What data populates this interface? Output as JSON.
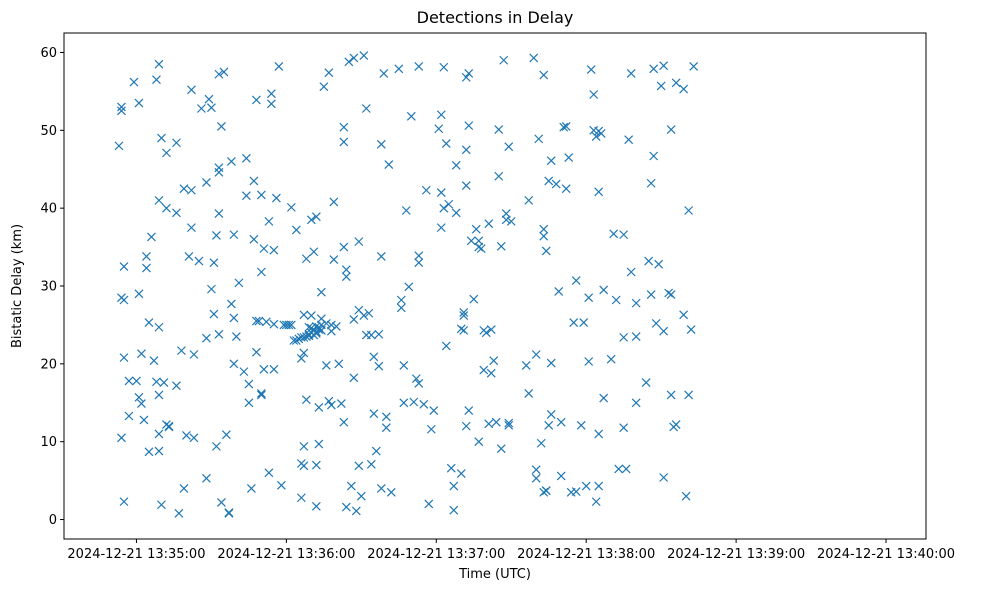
{
  "chart_data": {
    "type": "scatter",
    "title": "Detections in Delay",
    "xlabel": "Time (UTC)",
    "ylabel": "Bistatic Delay (km)",
    "marker": "x",
    "color": "#1f77b4",
    "xlim_seconds": [
      -29,
      316
    ],
    "ylim": [
      -2.5,
      62.5
    ],
    "x_ticks": [
      {
        "t": 0,
        "label": "2024-12-21 13:35:00"
      },
      {
        "t": 60,
        "label": "2024-12-21 13:36:00"
      },
      {
        "t": 120,
        "label": "2024-12-21 13:37:00"
      },
      {
        "t": 180,
        "label": "2024-12-21 13:38:00"
      },
      {
        "t": 240,
        "label": "2024-12-21 13:39:00"
      },
      {
        "t": 300,
        "label": "2024-12-21 13:40:00"
      }
    ],
    "y_ticks": [
      {
        "v": 0,
        "label": "0"
      },
      {
        "v": 10,
        "label": "10"
      },
      {
        "v": 20,
        "label": "20"
      },
      {
        "v": 30,
        "label": "30"
      },
      {
        "v": 40,
        "label": "40"
      },
      {
        "v": 50,
        "label": "50"
      },
      {
        "v": 60,
        "label": "60"
      }
    ],
    "x_units": "seconds after 2024-12-21 13:35:00 UTC",
    "points": [
      [
        -7,
        48
      ],
      [
        -6,
        53
      ],
      [
        -6,
        52.5
      ],
      [
        -6,
        28.5
      ],
      [
        -6,
        10.5
      ],
      [
        -5,
        20.8
      ],
      [
        -5,
        28.2
      ],
      [
        -5,
        32.5
      ],
      [
        -5,
        2.3
      ],
      [
        -3,
        17.8
      ],
      [
        -3,
        13.3
      ],
      [
        -1,
        56.2
      ],
      [
        0,
        17.8
      ],
      [
        1,
        53.5
      ],
      [
        1,
        29
      ],
      [
        1,
        15.7
      ],
      [
        2,
        21.3
      ],
      [
        2,
        14.9
      ],
      [
        3,
        12.8
      ],
      [
        4,
        32.3
      ],
      [
        4,
        33.8
      ],
      [
        5,
        25.3
      ],
      [
        5,
        8.7
      ],
      [
        6,
        36.3
      ],
      [
        7,
        20.4
      ],
      [
        8,
        17.7
      ],
      [
        8,
        56.5
      ],
      [
        9,
        58.5
      ],
      [
        9,
        41
      ],
      [
        9,
        24.7
      ],
      [
        9,
        16
      ],
      [
        9,
        11
      ],
      [
        9,
        8.8
      ],
      [
        10,
        49
      ],
      [
        10,
        1.9
      ],
      [
        11,
        17.6
      ],
      [
        12,
        47.1
      ],
      [
        12,
        40
      ],
      [
        12,
        12.2
      ],
      [
        13,
        12
      ],
      [
        13,
        11.9
      ],
      [
        16,
        48.4
      ],
      [
        16,
        39.4
      ],
      [
        16,
        17.2
      ],
      [
        17,
        0.8
      ],
      [
        18,
        21.7
      ],
      [
        19,
        42.5
      ],
      [
        19,
        4
      ],
      [
        20,
        10.8
      ],
      [
        21,
        33.8
      ],
      [
        22,
        55.2
      ],
      [
        22,
        42.3
      ],
      [
        22,
        37.5
      ],
      [
        23,
        21.2
      ],
      [
        23,
        10.5
      ],
      [
        25,
        33.2
      ],
      [
        26,
        52.8
      ],
      [
        28,
        43.3
      ],
      [
        28,
        23.3
      ],
      [
        28,
        5.3
      ],
      [
        29,
        54
      ],
      [
        30,
        52.9
      ],
      [
        30,
        29.6
      ],
      [
        31,
        26.4
      ],
      [
        31,
        33
      ],
      [
        32,
        9.4
      ],
      [
        32,
        36.5
      ],
      [
        33,
        57.2
      ],
      [
        33,
        44.6
      ],
      [
        33,
        45.2
      ],
      [
        33,
        39.3
      ],
      [
        33,
        23.8
      ],
      [
        34,
        50.5
      ],
      [
        34,
        2.2
      ],
      [
        35,
        57.5
      ],
      [
        36,
        10.9
      ],
      [
        37,
        0.8
      ],
      [
        37,
        0.9
      ],
      [
        38,
        46
      ],
      [
        38,
        27.7
      ],
      [
        39,
        36.6
      ],
      [
        39,
        25.9
      ],
      [
        39,
        20
      ],
      [
        40,
        23.5
      ],
      [
        41,
        30.4
      ],
      [
        43,
        19
      ],
      [
        44,
        46.4
      ],
      [
        44,
        41.6
      ],
      [
        45,
        17.4
      ],
      [
        45,
        15
      ],
      [
        46,
        4
      ],
      [
        47,
        43.5
      ],
      [
        47,
        36
      ],
      [
        48,
        53.9
      ],
      [
        48,
        25.5
      ],
      [
        48,
        21.5
      ],
      [
        49,
        25.5
      ],
      [
        50,
        31.8
      ],
      [
        50,
        41.7
      ],
      [
        50,
        16.2
      ],
      [
        50,
        16
      ],
      [
        51,
        34.8
      ],
      [
        51,
        19.3
      ],
      [
        52,
        25.4
      ],
      [
        53,
        6
      ],
      [
        53,
        38.3
      ],
      [
        54,
        54.7
      ],
      [
        54,
        53.4
      ],
      [
        55,
        25.1
      ],
      [
        55,
        34.6
      ],
      [
        55,
        19.3
      ],
      [
        56,
        41.3
      ],
      [
        57,
        58.2
      ],
      [
        58,
        4.4
      ],
      [
        59,
        25
      ],
      [
        60,
        25
      ],
      [
        61,
        25
      ],
      [
        62,
        25
      ],
      [
        62,
        40.1
      ],
      [
        63,
        23
      ],
      [
        64,
        37.2
      ],
      [
        64,
        23
      ],
      [
        65,
        23.2
      ],
      [
        66,
        23.4
      ],
      [
        66,
        20.7
      ],
      [
        66,
        7.2
      ],
      [
        66,
        2.8
      ],
      [
        67,
        23.4
      ],
      [
        67,
        26.3
      ],
      [
        67,
        21.4
      ],
      [
        67,
        9.4
      ],
      [
        67,
        6.9
      ],
      [
        68,
        23.5
      ],
      [
        68,
        33.5
      ],
      [
        68,
        15.4
      ],
      [
        69,
        23.6
      ],
      [
        69,
        24.7
      ],
      [
        69,
        23.8
      ],
      [
        70,
        24
      ],
      [
        70,
        26.2
      ],
      [
        70,
        38.5
      ],
      [
        70,
        24.6
      ],
      [
        71,
        24.3
      ],
      [
        71,
        23.7
      ],
      [
        71,
        34.4
      ],
      [
        72,
        24.1
      ],
      [
        72,
        23.9
      ],
      [
        72,
        24.8
      ],
      [
        72,
        38.9
      ],
      [
        72,
        1.7
      ],
      [
        72,
        7
      ],
      [
        73,
        24.4
      ],
      [
        73,
        24.7
      ],
      [
        73,
        9.7
      ],
      [
        73,
        14.4
      ],
      [
        74,
        25
      ],
      [
        74,
        29.2
      ],
      [
        74,
        25.8
      ],
      [
        74,
        24.3
      ],
      [
        74,
        24.3
      ],
      [
        75,
        55.6
      ],
      [
        76,
        25.2
      ],
      [
        76,
        19.8
      ],
      [
        77,
        15.2
      ],
      [
        77,
        57.4
      ],
      [
        78,
        24.2
      ],
      [
        78,
        25
      ],
      [
        78,
        14.7
      ],
      [
        79,
        40.8
      ],
      [
        79,
        33.4
      ],
      [
        80,
        24.8
      ],
      [
        81,
        20
      ],
      [
        82,
        14.9
      ],
      [
        83,
        50.4
      ],
      [
        83,
        48.5
      ],
      [
        83,
        35
      ],
      [
        83,
        12.5
      ],
      [
        84,
        32.1
      ],
      [
        84,
        31.2
      ],
      [
        84,
        1.6
      ],
      [
        85,
        58.8
      ],
      [
        86,
        4.3
      ],
      [
        87,
        59.3
      ],
      [
        87,
        25.7
      ],
      [
        87,
        18.2
      ],
      [
        88,
        1.1
      ],
      [
        89,
        35.7
      ],
      [
        89,
        26.9
      ],
      [
        89,
        6.9
      ],
      [
        90,
        3
      ],
      [
        91,
        59.6
      ],
      [
        91,
        26.2
      ],
      [
        92,
        52.8
      ],
      [
        92,
        23.7
      ],
      [
        93,
        26.5
      ],
      [
        94,
        7.1
      ],
      [
        94,
        23.7
      ],
      [
        95,
        20.9
      ],
      [
        95,
        13.6
      ],
      [
        96,
        8.8
      ],
      [
        97,
        23.8
      ],
      [
        97,
        19.7
      ],
      [
        98,
        48.2
      ],
      [
        98,
        33.8
      ],
      [
        98,
        4
      ],
      [
        99,
        57.3
      ],
      [
        100,
        11.8
      ],
      [
        100,
        13.2
      ],
      [
        101,
        45.6
      ],
      [
        102,
        3.5
      ],
      [
        105,
        57.9
      ],
      [
        106,
        28.2
      ],
      [
        106,
        27.2
      ],
      [
        107,
        15
      ],
      [
        107,
        19.8
      ],
      [
        108,
        39.7
      ],
      [
        109,
        29.9
      ],
      [
        110,
        51.8
      ],
      [
        111,
        15.1
      ],
      [
        112,
        18.1
      ],
      [
        113,
        17.5
      ],
      [
        113,
        58.2
      ],
      [
        113,
        33.9
      ],
      [
        113,
        33
      ],
      [
        115,
        14.8
      ],
      [
        116,
        42.3
      ],
      [
        117,
        2
      ],
      [
        118,
        11.6
      ],
      [
        119,
        14
      ],
      [
        121,
        50.2
      ],
      [
        122,
        52
      ],
      [
        122,
        42
      ],
      [
        122,
        37.5
      ],
      [
        123,
        40
      ],
      [
        123,
        58.1
      ],
      [
        124,
        48.3
      ],
      [
        124,
        22.3
      ],
      [
        125,
        40.5
      ],
      [
        126,
        6.6
      ],
      [
        127,
        4.3
      ],
      [
        127,
        1.2
      ],
      [
        128,
        39.4
      ],
      [
        128,
        45.5
      ],
      [
        130,
        5.9
      ],
      [
        130,
        24.5
      ],
      [
        131,
        24.3
      ],
      [
        131,
        26.2
      ],
      [
        131,
        26.6
      ],
      [
        132,
        47.5
      ],
      [
        132,
        56.8
      ],
      [
        132,
        42.9
      ],
      [
        132,
        12
      ],
      [
        133,
        57.3
      ],
      [
        133,
        50.6
      ],
      [
        133,
        14
      ],
      [
        134,
        35.8
      ],
      [
        135,
        28.3
      ],
      [
        136,
        37.3
      ],
      [
        137,
        35.8
      ],
      [
        137,
        35
      ],
      [
        137,
        10
      ],
      [
        138,
        34.8
      ],
      [
        139,
        19.2
      ],
      [
        139,
        24.3
      ],
      [
        140,
        24
      ],
      [
        141,
        12.3
      ],
      [
        141,
        38
      ],
      [
        142,
        18.8
      ],
      [
        142,
        24.4
      ],
      [
        143,
        20.4
      ],
      [
        144,
        12.5
      ],
      [
        145,
        50.1
      ],
      [
        145,
        44.1
      ],
      [
        146,
        35.1
      ],
      [
        146,
        9.1
      ],
      [
        147,
        59
      ],
      [
        148,
        39.3
      ],
      [
        148,
        38.5
      ],
      [
        149,
        47.9
      ],
      [
        149,
        12.1
      ],
      [
        149,
        12.4
      ],
      [
        150,
        38.3
      ],
      [
        156,
        19.8
      ],
      [
        157,
        16.2
      ],
      [
        157,
        41
      ],
      [
        159,
        59.3
      ],
      [
        160,
        6.4
      ],
      [
        160,
        21.2
      ],
      [
        160,
        5.3
      ],
      [
        161,
        48.9
      ],
      [
        162,
        9.8
      ],
      [
        163,
        57.1
      ],
      [
        163,
        37.3
      ],
      [
        163,
        36.4
      ],
      [
        163,
        3.5
      ],
      [
        164,
        34.5
      ],
      [
        164,
        3.7
      ],
      [
        164,
        3.7
      ],
      [
        165,
        43.5
      ],
      [
        165,
        12.1
      ],
      [
        166,
        46.1
      ],
      [
        166,
        13.5
      ],
      [
        166,
        20.1
      ],
      [
        168,
        43.1
      ],
      [
        169,
        29.3
      ],
      [
        170,
        5.6
      ],
      [
        170,
        12.5
      ],
      [
        171,
        50.4
      ],
      [
        172,
        42.5
      ],
      [
        172,
        50.5
      ],
      [
        173,
        46.5
      ],
      [
        174,
        3.5
      ],
      [
        175,
        25.3
      ],
      [
        176,
        3.6
      ],
      [
        176,
        30.7
      ],
      [
        178,
        12.1
      ],
      [
        179,
        25.3
      ],
      [
        180,
        4.3
      ],
      [
        181,
        28.5
      ],
      [
        181,
        20.3
      ],
      [
        182,
        57.8
      ],
      [
        183,
        50
      ],
      [
        183,
        54.6
      ],
      [
        184,
        49.2
      ],
      [
        184,
        2.3
      ],
      [
        185,
        42.1
      ],
      [
        185,
        49.9
      ],
      [
        185,
        11
      ],
      [
        185,
        4.3
      ],
      [
        186,
        49.6
      ],
      [
        187,
        29.5
      ],
      [
        187,
        15.6
      ],
      [
        190,
        20.6
      ],
      [
        191,
        36.7
      ],
      [
        192,
        28.2
      ],
      [
        193,
        6.5
      ],
      [
        195,
        36.6
      ],
      [
        195,
        23.4
      ],
      [
        195,
        11.8
      ],
      [
        196,
        6.5
      ],
      [
        197,
        48.8
      ],
      [
        198,
        57.3
      ],
      [
        198,
        31.8
      ],
      [
        200,
        15
      ],
      [
        200,
        27.8
      ],
      [
        200,
        23.5
      ],
      [
        204,
        17.6
      ],
      [
        205,
        33.2
      ],
      [
        206,
        43.2
      ],
      [
        206,
        28.9
      ],
      [
        207,
        46.7
      ],
      [
        207,
        57.9
      ],
      [
        208,
        25.2
      ],
      [
        209,
        32.8
      ],
      [
        210,
        55.7
      ],
      [
        211,
        58.3
      ],
      [
        211,
        24.2
      ],
      [
        211,
        5.4
      ],
      [
        213,
        29.1
      ],
      [
        214,
        28.9
      ],
      [
        214,
        50.1
      ],
      [
        214,
        16
      ],
      [
        215,
        11.9
      ],
      [
        216,
        56.1
      ],
      [
        216,
        12.2
      ],
      [
        219,
        55.3
      ],
      [
        219,
        26.3
      ],
      [
        220,
        3
      ],
      [
        221,
        39.7
      ],
      [
        221,
        16
      ],
      [
        222,
        24.4
      ],
      [
        223,
        58.2
      ]
    ]
  }
}
